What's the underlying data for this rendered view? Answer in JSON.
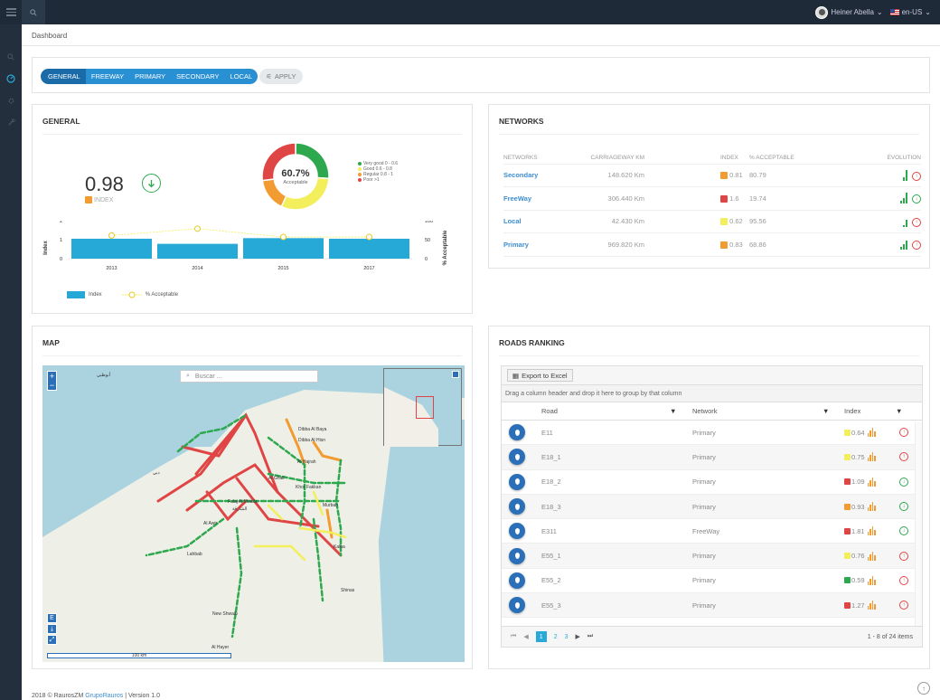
{
  "header": {
    "user_name": "Heiner Abella",
    "language": "en-US",
    "user_chevron": "⌄",
    "lang_chevron": "⌄"
  },
  "breadcrumb": "Dashboard",
  "filters": {
    "buttons": [
      "GENERAL",
      "FREEWAY",
      "PRIMARY",
      "SECONDARY",
      "LOCAL"
    ],
    "apply": "APPLY"
  },
  "general": {
    "title": "GENERAL",
    "index_value": "0.98",
    "index_label": "INDEX",
    "donut_value": "60.7%",
    "donut_label": "Acceptable",
    "legend": [
      "Very good 0 - 0.6",
      "Good 0.6 - 0.8",
      "Regular 0.8 - 1",
      "Poor >1"
    ],
    "legend_colors": [
      "#2ea84f",
      "#f3ee5b",
      "#f29b30",
      "#e04545"
    ],
    "donut_slices": [
      26,
      31,
      16,
      27
    ],
    "chart_data": {
      "type": "bar",
      "categories": [
        "2013",
        "2014",
        "2015",
        "2017"
      ],
      "series": [
        {
          "name": "Index",
          "values": [
            1.05,
            0.78,
            1.08,
            1.05
          ]
        },
        {
          "name": "% Acceptable",
          "values": [
            61,
            79,
            57,
            57
          ]
        }
      ],
      "ylabel": "Index",
      "y2label": "% Acceptable",
      "ylim": [
        0,
        2
      ],
      "y2lim": [
        0,
        100
      ],
      "yticks": [
        "2",
        "1",
        "0"
      ],
      "y2ticks": [
        "100",
        "50",
        "0"
      ]
    }
  },
  "networks": {
    "title": "NETWORKS",
    "columns": [
      "NETWORKS",
      "CARRIAGEWAY KM",
      "INDEX",
      "% ACCEPTABLE",
      "EVOLUTION"
    ],
    "rows": [
      {
        "name": "Secondary",
        "km": "148.620 Km",
        "index": "0.81",
        "acceptable": "80.79",
        "color": "#f29b30",
        "trend": "up"
      },
      {
        "name": "FreeWay",
        "km": "306.440 Km",
        "index": "1.6",
        "acceptable": "19.74",
        "color": "#e04545",
        "trend": "dn"
      },
      {
        "name": "Local",
        "km": "42.430 Km",
        "index": "0.62",
        "acceptable": "95.56",
        "color": "#f3ee5b",
        "trend": "up"
      },
      {
        "name": "Primary",
        "km": "969.820 Km",
        "index": "0.83",
        "acceptable": "68.86",
        "color": "#f29b30",
        "trend": "up"
      }
    ]
  },
  "map": {
    "title": "MAP",
    "search_placeholder": "Buscar ...",
    "scale": "100 km",
    "labels": [
      "Dibba Al Baya",
      "Dibba Al Hisn",
      "Al Hajrah",
      "Al Ghail",
      "Khor Fakkan",
      "Falaj Al Moalla",
      "Murbah",
      "Al Awir",
      "Kalba",
      "Lahbab",
      "New Shwaib",
      "Shinas",
      "Al Hayer",
      "الشارقة",
      "دبي",
      "أبوظبي"
    ]
  },
  "ranking": {
    "title": "ROADS RANKING",
    "export": "Export to Excel",
    "group_hint": "Drag a column header and drop it here to group by that column",
    "columns": [
      "Road",
      "Network",
      "Index"
    ],
    "rows": [
      {
        "road": "E11",
        "network": "Primary",
        "index": "0.64",
        "color": "#f3ee5b",
        "trend": "up"
      },
      {
        "road": "E18_1",
        "network": "Primary",
        "index": "0.75",
        "color": "#f3ee5b",
        "trend": "up"
      },
      {
        "road": "E18_2",
        "network": "Primary",
        "index": "1.09",
        "color": "#e04545",
        "trend": "dn"
      },
      {
        "road": "E18_3",
        "network": "Primary",
        "index": "0.93",
        "color": "#f29b30",
        "trend": "dn"
      },
      {
        "road": "E311",
        "network": "FreeWay",
        "index": "1.81",
        "color": "#e04545",
        "trend": "dn"
      },
      {
        "road": "E55_1",
        "network": "Primary",
        "index": "0.76",
        "color": "#f3ee5b",
        "trend": "up"
      },
      {
        "road": "E55_2",
        "network": "Primary",
        "index": "0.59",
        "color": "#2ea84f",
        "trend": "up"
      },
      {
        "road": "E55_3",
        "network": "Primary",
        "index": "1.27",
        "color": "#e04545",
        "trend": "up"
      }
    ],
    "pages": [
      "1",
      "2",
      "3"
    ],
    "pager_first": "⏮",
    "pager_prev": "◀",
    "pager_next": "▶",
    "pager_last": "⏭",
    "summary": "1 - 8 of 24 items"
  },
  "footer": {
    "copy": "2018 © RaurosZM",
    "company": "GrupoRauros",
    "version": "| Version 1.0"
  }
}
